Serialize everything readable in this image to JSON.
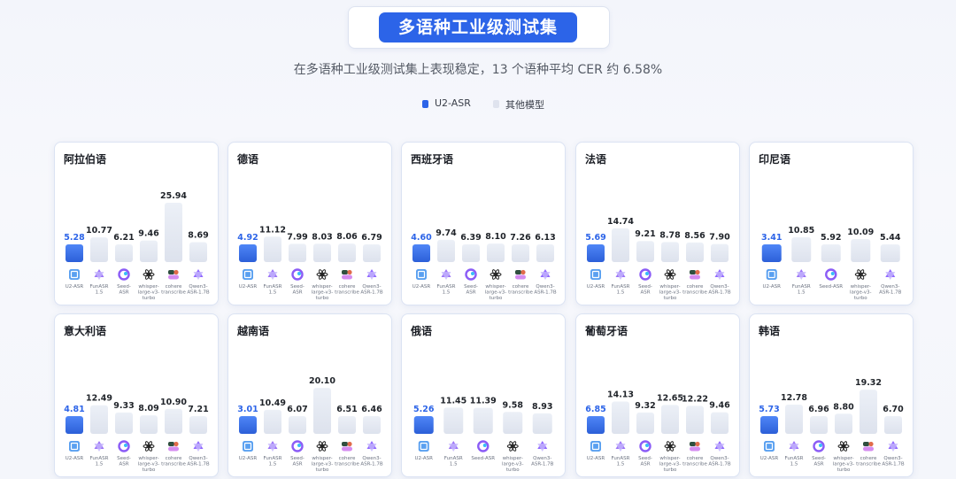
{
  "header": {
    "title": "多语种工业级测试集",
    "subtitle": "在多语种工业级测试集上表现稳定，13 个语种平均 CER 约 6.58%"
  },
  "legend": [
    {
      "label": "U2-ASR",
      "color": "#2c64e8"
    },
    {
      "label": "其他模型",
      "color": "#dfe3ee"
    }
  ],
  "colors": {
    "highlight_bar": "#2c64e8",
    "highlight_label": "#2c64e8",
    "other_bar": "#e3e7f1",
    "value_label": "#1f2329",
    "model_label": "#6b7280"
  },
  "models": {
    "u2": {
      "label": "U2-ASR",
      "icon": "u2-asr-icon"
    },
    "fun": {
      "label": "FunASR 1.5",
      "icon": "funasr-icon"
    },
    "seed": {
      "label": "Seed-ASR",
      "icon": "seed-asr-icon"
    },
    "wsp": {
      "label": "whisper-large-v3-turbo",
      "icon": "openai-icon"
    },
    "coh": {
      "label": "cohere transcribe",
      "icon": "cohere-icon"
    },
    "qwen": {
      "label": "Qwen3-ASR-1.7B",
      "icon": "qwen-icon"
    }
  },
  "chart_data": [
    {
      "type": "bar",
      "title": "阿拉伯语",
      "categories": [
        "u2",
        "fun",
        "seed",
        "wsp",
        "coh",
        "qwen"
      ],
      "values": [
        5.28,
        10.77,
        6.21,
        9.46,
        25.94,
        8.69
      ],
      "labels": [
        "5.28",
        "10.77",
        "6.21",
        "9.46",
        "25.94",
        "8.69"
      ],
      "highlight": 0
    },
    {
      "type": "bar",
      "title": "德语",
      "categories": [
        "u2",
        "fun",
        "seed",
        "wsp",
        "coh",
        "qwen"
      ],
      "values": [
        4.92,
        11.12,
        7.99,
        8.03,
        8.06,
        6.79
      ],
      "labels": [
        "4.92",
        "11.12",
        "7.99",
        "8.03",
        "8.06",
        "6.79"
      ],
      "highlight": 0
    },
    {
      "type": "bar",
      "title": "西班牙语",
      "categories": [
        "u2",
        "fun",
        "seed",
        "wsp",
        "coh",
        "qwen"
      ],
      "values": [
        4.6,
        9.74,
        6.39,
        8.1,
        7.26,
        6.13
      ],
      "labels": [
        "4.60",
        "9.74",
        "6.39",
        "8.10",
        "7.26",
        "6.13"
      ],
      "highlight": 0
    },
    {
      "type": "bar",
      "title": "法语",
      "categories": [
        "u2",
        "fun",
        "seed",
        "wsp",
        "coh",
        "qwen"
      ],
      "values": [
        5.69,
        14.74,
        9.21,
        8.78,
        8.56,
        7.9
      ],
      "labels": [
        "5.69",
        "14.74",
        "9.21",
        "8.78",
        "8.56",
        "7.90"
      ],
      "highlight": 0
    },
    {
      "type": "bar",
      "title": "印尼语",
      "categories": [
        "u2",
        "fun",
        "seed",
        "wsp",
        "qwen"
      ],
      "values": [
        3.41,
        10.85,
        5.92,
        10.09,
        5.44
      ],
      "labels": [
        "3.41",
        "10.85",
        "5.92",
        "10.09",
        "5.44"
      ],
      "highlight": 0
    },
    {
      "type": "bar",
      "title": "意大利语",
      "categories": [
        "u2",
        "fun",
        "seed",
        "wsp",
        "coh",
        "qwen"
      ],
      "values": [
        4.81,
        12.49,
        9.33,
        8.09,
        10.9,
        7.21
      ],
      "labels": [
        "4.81",
        "12.49",
        "9.33",
        "8.09",
        "10.90",
        "7.21"
      ],
      "highlight": 0
    },
    {
      "type": "bar",
      "title": "越南语",
      "categories": [
        "u2",
        "fun",
        "seed",
        "wsp",
        "coh",
        "qwen"
      ],
      "values": [
        3.01,
        10.49,
        6.07,
        20.1,
        6.51,
        6.46
      ],
      "labels": [
        "3.01",
        "10.49",
        "6.07",
        "20.10",
        "6.51",
        "6.46"
      ],
      "highlight": 0
    },
    {
      "type": "bar",
      "title": "俄语",
      "categories": [
        "u2",
        "fun",
        "seed",
        "wsp",
        "qwen"
      ],
      "values": [
        5.26,
        11.45,
        11.39,
        9.58,
        8.93
      ],
      "labels": [
        "5.26",
        "11.45",
        "11.39",
        "9.58",
        "8.93"
      ],
      "highlight": 0
    },
    {
      "type": "bar",
      "title": "葡萄牙语",
      "categories": [
        "u2",
        "fun",
        "seed",
        "wsp",
        "coh",
        "qwen"
      ],
      "values": [
        6.85,
        14.13,
        9.32,
        12.65,
        12.22,
        9.46
      ],
      "labels": [
        "6.85",
        "14.13",
        "9.32",
        "12.65",
        "12.22",
        "9.46"
      ],
      "highlight": 0
    },
    {
      "type": "bar",
      "title": "韩语",
      "categories": [
        "u2",
        "fun",
        "seed",
        "wsp",
        "coh",
        "qwen"
      ],
      "values": [
        5.73,
        12.78,
        6.96,
        8.8,
        19.32,
        6.7
      ],
      "labels": [
        "5.73",
        "12.78",
        "6.96",
        "8.80",
        "19.32",
        "6.70"
      ],
      "highlight": 0
    }
  ]
}
